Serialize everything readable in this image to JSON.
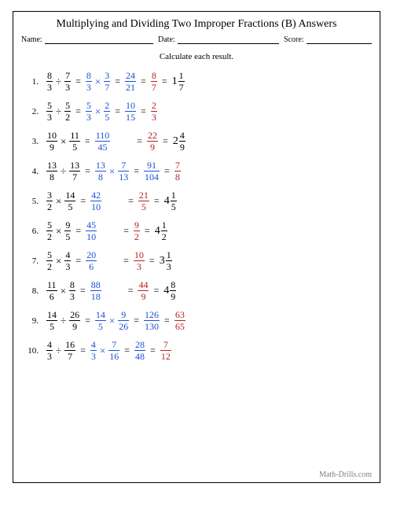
{
  "title": "Multiplying and Dividing Two Improper Fractions (B) Answers",
  "meta": {
    "name_label": "Name:",
    "date_label": "Date:",
    "score_label": "Score:"
  },
  "instruction": "Calculate each result.",
  "footer": "Math-Drills.com",
  "colors": {
    "black": "#000000",
    "blue": "#1a4fd6",
    "red": "#b22222",
    "grey": "#808080"
  },
  "problems": [
    {
      "n": "1.",
      "steps": [
        {
          "t": "frac",
          "num": "8",
          "den": "3",
          "c": "black"
        },
        {
          "t": "op",
          "v": "÷",
          "c": "black"
        },
        {
          "t": "frac",
          "num": "7",
          "den": "3",
          "c": "black"
        },
        {
          "t": "eq"
        },
        {
          "t": "frac",
          "num": "8",
          "den": "3",
          "c": "blue"
        },
        {
          "t": "op",
          "v": "×",
          "c": "blue"
        },
        {
          "t": "frac",
          "num": "3",
          "den": "7",
          "c": "blue"
        },
        {
          "t": "eq"
        },
        {
          "t": "frac",
          "num": "24",
          "den": "21",
          "c": "blue"
        },
        {
          "t": "eq"
        },
        {
          "t": "frac",
          "num": "8",
          "den": "7",
          "c": "red"
        },
        {
          "t": "eq"
        },
        {
          "t": "mixed",
          "w": "1",
          "num": "1",
          "den": "7",
          "c": "black"
        }
      ]
    },
    {
      "n": "2.",
      "steps": [
        {
          "t": "frac",
          "num": "5",
          "den": "3",
          "c": "black"
        },
        {
          "t": "op",
          "v": "÷",
          "c": "black"
        },
        {
          "t": "frac",
          "num": "5",
          "den": "2",
          "c": "black"
        },
        {
          "t": "eq"
        },
        {
          "t": "frac",
          "num": "5",
          "den": "3",
          "c": "blue"
        },
        {
          "t": "op",
          "v": "×",
          "c": "blue"
        },
        {
          "t": "frac",
          "num": "2",
          "den": "5",
          "c": "blue"
        },
        {
          "t": "eq"
        },
        {
          "t": "frac",
          "num": "10",
          "den": "15",
          "c": "blue"
        },
        {
          "t": "eq"
        },
        {
          "t": "frac",
          "num": "2",
          "den": "3",
          "c": "red"
        }
      ]
    },
    {
      "n": "3.",
      "steps": [
        {
          "t": "frac",
          "num": "10",
          "den": "9",
          "c": "black"
        },
        {
          "t": "op",
          "v": "×",
          "c": "black"
        },
        {
          "t": "frac",
          "num": "11",
          "den": "5",
          "c": "black"
        },
        {
          "t": "eq"
        },
        {
          "t": "frac",
          "num": "110",
          "den": "45",
          "c": "blue"
        },
        {
          "t": "sp"
        },
        {
          "t": "eq"
        },
        {
          "t": "frac",
          "num": "22",
          "den": "9",
          "c": "red"
        },
        {
          "t": "eq"
        },
        {
          "t": "mixed",
          "w": "2",
          "num": "4",
          "den": "9",
          "c": "black"
        }
      ]
    },
    {
      "n": "4.",
      "steps": [
        {
          "t": "frac",
          "num": "13",
          "den": "8",
          "c": "black"
        },
        {
          "t": "op",
          "v": "÷",
          "c": "black"
        },
        {
          "t": "frac",
          "num": "13",
          "den": "7",
          "c": "black"
        },
        {
          "t": "eq"
        },
        {
          "t": "frac",
          "num": "13",
          "den": "8",
          "c": "blue"
        },
        {
          "t": "op",
          "v": "×",
          "c": "blue"
        },
        {
          "t": "frac",
          "num": "7",
          "den": "13",
          "c": "blue"
        },
        {
          "t": "eq"
        },
        {
          "t": "frac",
          "num": "91",
          "den": "104",
          "c": "blue"
        },
        {
          "t": "eq"
        },
        {
          "t": "frac",
          "num": "7",
          "den": "8",
          "c": "red"
        }
      ]
    },
    {
      "n": "5.",
      "steps": [
        {
          "t": "frac",
          "num": "3",
          "den": "2",
          "c": "black"
        },
        {
          "t": "op",
          "v": "×",
          "c": "black"
        },
        {
          "t": "frac",
          "num": "14",
          "den": "5",
          "c": "black"
        },
        {
          "t": "eq"
        },
        {
          "t": "frac",
          "num": "42",
          "den": "10",
          "c": "blue"
        },
        {
          "t": "sp"
        },
        {
          "t": "eq"
        },
        {
          "t": "frac",
          "num": "21",
          "den": "5",
          "c": "red"
        },
        {
          "t": "eq"
        },
        {
          "t": "mixed",
          "w": "4",
          "num": "1",
          "den": "5",
          "c": "black"
        }
      ]
    },
    {
      "n": "6.",
      "steps": [
        {
          "t": "frac",
          "num": "5",
          "den": "2",
          "c": "black"
        },
        {
          "t": "op",
          "v": "×",
          "c": "black"
        },
        {
          "t": "frac",
          "num": "9",
          "den": "5",
          "c": "black"
        },
        {
          "t": "eq"
        },
        {
          "t": "frac",
          "num": "45",
          "den": "10",
          "c": "blue"
        },
        {
          "t": "sp"
        },
        {
          "t": "eq"
        },
        {
          "t": "frac",
          "num": "9",
          "den": "2",
          "c": "red"
        },
        {
          "t": "eq"
        },
        {
          "t": "mixed",
          "w": "4",
          "num": "1",
          "den": "2",
          "c": "black"
        }
      ]
    },
    {
      "n": "7.",
      "steps": [
        {
          "t": "frac",
          "num": "5",
          "den": "2",
          "c": "black"
        },
        {
          "t": "op",
          "v": "×",
          "c": "black"
        },
        {
          "t": "frac",
          "num": "4",
          "den": "3",
          "c": "black"
        },
        {
          "t": "eq"
        },
        {
          "t": "frac",
          "num": "20",
          "den": "6",
          "c": "blue"
        },
        {
          "t": "sp"
        },
        {
          "t": "eq"
        },
        {
          "t": "frac",
          "num": "10",
          "den": "3",
          "c": "red"
        },
        {
          "t": "eq"
        },
        {
          "t": "mixed",
          "w": "3",
          "num": "1",
          "den": "3",
          "c": "black"
        }
      ]
    },
    {
      "n": "8.",
      "steps": [
        {
          "t": "frac",
          "num": "11",
          "den": "6",
          "c": "black"
        },
        {
          "t": "op",
          "v": "×",
          "c": "black"
        },
        {
          "t": "frac",
          "num": "8",
          "den": "3",
          "c": "black"
        },
        {
          "t": "eq"
        },
        {
          "t": "frac",
          "num": "88",
          "den": "18",
          "c": "blue"
        },
        {
          "t": "sp"
        },
        {
          "t": "eq"
        },
        {
          "t": "frac",
          "num": "44",
          "den": "9",
          "c": "red"
        },
        {
          "t": "eq"
        },
        {
          "t": "mixed",
          "w": "4",
          "num": "8",
          "den": "9",
          "c": "black"
        }
      ]
    },
    {
      "n": "9.",
      "steps": [
        {
          "t": "frac",
          "num": "14",
          "den": "5",
          "c": "black"
        },
        {
          "t": "op",
          "v": "÷",
          "c": "black"
        },
        {
          "t": "frac",
          "num": "26",
          "den": "9",
          "c": "black"
        },
        {
          "t": "eq"
        },
        {
          "t": "frac",
          "num": "14",
          "den": "5",
          "c": "blue"
        },
        {
          "t": "op",
          "v": "×",
          "c": "blue"
        },
        {
          "t": "frac",
          "num": "9",
          "den": "26",
          "c": "blue"
        },
        {
          "t": "eq"
        },
        {
          "t": "frac",
          "num": "126",
          "den": "130",
          "c": "blue"
        },
        {
          "t": "eq"
        },
        {
          "t": "frac",
          "num": "63",
          "den": "65",
          "c": "red"
        }
      ]
    },
    {
      "n": "10.",
      "steps": [
        {
          "t": "frac",
          "num": "4",
          "den": "3",
          "c": "black"
        },
        {
          "t": "op",
          "v": "÷",
          "c": "black"
        },
        {
          "t": "frac",
          "num": "16",
          "den": "7",
          "c": "black"
        },
        {
          "t": "eq"
        },
        {
          "t": "frac",
          "num": "4",
          "den": "3",
          "c": "blue"
        },
        {
          "t": "op",
          "v": "×",
          "c": "blue"
        },
        {
          "t": "frac",
          "num": "7",
          "den": "16",
          "c": "blue"
        },
        {
          "t": "eq"
        },
        {
          "t": "frac",
          "num": "28",
          "den": "48",
          "c": "blue"
        },
        {
          "t": "eq"
        },
        {
          "t": "frac",
          "num": "7",
          "den": "12",
          "c": "red"
        }
      ]
    }
  ]
}
